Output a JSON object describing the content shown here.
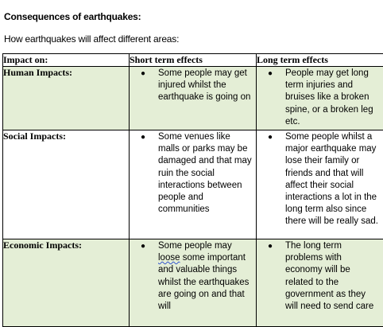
{
  "title": "Consequences of earthquakes:",
  "subtitle": "How earthquakes will affect different areas:",
  "table": {
    "headers": [
      "Impact on:",
      "Short term effects",
      "Long term effects"
    ],
    "rows": [
      {
        "label": "Human Impacts:",
        "short": "Some people may get injured whilst the earthquake is going on",
        "long": "People may get long term injuries and bruises like a broken spine, or a broken leg etc."
      },
      {
        "label": "Social Impacts:",
        "short": "Some venues like malls or parks may be damaged and that may ruin the social interactions between people and communities",
        "long": "Some people whilst a major earthquake may lose their family or friends and that will affect their social interactions a lot in the long term also since there will be really sad."
      },
      {
        "label": "Economic Impacts:",
        "short_before": "Some people may ",
        "short_misspelled": "loose",
        "short_after": " some important and valuable things whilst the earthquakes are going on and that will",
        "long": "The long term problems with economy will be related to the government as they will need to send care"
      }
    ]
  },
  "bullet_glyph": "●"
}
